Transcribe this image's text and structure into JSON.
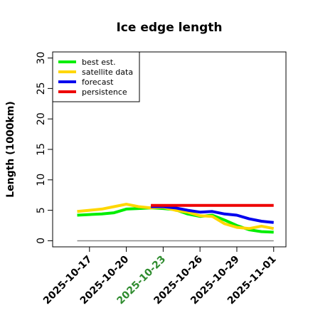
{
  "chart_data": {
    "type": "line",
    "title": "Ice edge length",
    "ylabel": "Length (1000km)",
    "xlabel": "",
    "ylim": [
      -1,
      31
    ],
    "xlim": [
      "2025-10-14",
      "2025-11-02"
    ],
    "yticks": [
      0,
      5,
      10,
      15,
      20,
      25,
      30
    ],
    "xticks": [
      "2025-10-17",
      "2025-10-20",
      "2025-10-23",
      "2025-10-26",
      "2025-10-29",
      "2025-11-01"
    ],
    "highlight_tick": "2025-10-23",
    "highlight_color": "#2e8b2e",
    "baseline": 0,
    "legend_position": "top-left",
    "grid": false,
    "series": [
      {
        "name": "best est.",
        "color": "#00ee00",
        "points": [
          [
            "2025-10-16",
            4.2
          ],
          [
            "2025-10-17",
            4.3
          ],
          [
            "2025-10-18",
            4.4
          ],
          [
            "2025-10-19",
            4.6
          ],
          [
            "2025-10-20",
            5.2
          ],
          [
            "2025-10-21",
            5.3
          ],
          [
            "2025-10-22",
            5.4
          ],
          [
            "2025-10-23",
            5.3
          ],
          [
            "2025-10-24",
            5.1
          ],
          [
            "2025-10-25",
            4.4
          ],
          [
            "2025-10-26",
            4.0
          ],
          [
            "2025-10-27",
            4.2
          ],
          [
            "2025-10-28",
            3.4
          ],
          [
            "2025-10-29",
            2.5
          ],
          [
            "2025-10-30",
            1.8
          ],
          [
            "2025-10-31",
            1.5
          ],
          [
            "2025-11-01",
            1.4
          ]
        ]
      },
      {
        "name": "satellite data",
        "color": "#ffd700",
        "points": [
          [
            "2025-10-16",
            4.8
          ],
          [
            "2025-10-17",
            5.0
          ],
          [
            "2025-10-18",
            5.2
          ],
          [
            "2025-10-19",
            5.6
          ],
          [
            "2025-10-20",
            6.0
          ],
          [
            "2025-10-21",
            5.6
          ],
          [
            "2025-10-22",
            5.4
          ],
          [
            "2025-10-23",
            5.5
          ],
          [
            "2025-10-24",
            5.0
          ],
          [
            "2025-10-25",
            4.7
          ],
          [
            "2025-10-26",
            4.1
          ],
          [
            "2025-10-27",
            4.0
          ],
          [
            "2025-10-28",
            2.8
          ],
          [
            "2025-10-29",
            2.2
          ],
          [
            "2025-10-30",
            2.0
          ],
          [
            "2025-10-31",
            2.4
          ],
          [
            "2025-11-01",
            2.0
          ]
        ]
      },
      {
        "name": "forecast",
        "color": "#0000ee",
        "points": [
          [
            "2025-10-22",
            5.6
          ],
          [
            "2025-10-23",
            5.6
          ],
          [
            "2025-10-24",
            5.4
          ],
          [
            "2025-10-25",
            5.0
          ],
          [
            "2025-10-26",
            4.7
          ],
          [
            "2025-10-27",
            4.8
          ],
          [
            "2025-10-28",
            4.4
          ],
          [
            "2025-10-29",
            4.2
          ],
          [
            "2025-10-30",
            3.6
          ],
          [
            "2025-10-31",
            3.2
          ],
          [
            "2025-11-01",
            3.0
          ]
        ]
      },
      {
        "name": "persistence",
        "color": "#ee0000",
        "points": [
          [
            "2025-10-22",
            5.8
          ],
          [
            "2025-11-01",
            5.8
          ]
        ]
      }
    ]
  }
}
